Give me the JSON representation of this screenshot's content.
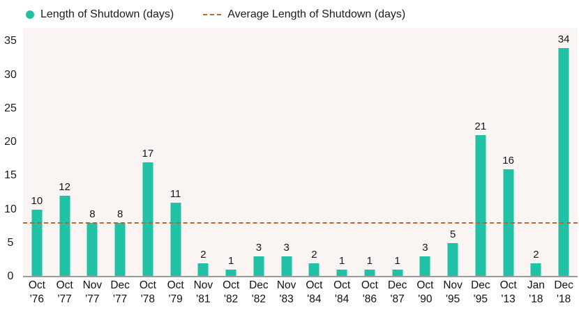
{
  "legend": {
    "series1": "Length of Shutdown (days)",
    "series2": "Average Length of Shutdown (days)"
  },
  "colors": {
    "bar": "#20c1a5",
    "average_line": "#bc6530",
    "plot_bg": "#faf4f2",
    "axis_line": "#9b9b9b",
    "text": "#1c1c1e"
  },
  "chart_data": {
    "type": "bar",
    "title": "",
    "xlabel": "",
    "ylabel": "",
    "legend_position": "top",
    "grid": false,
    "categories": [
      "Oct '76",
      "Oct '77",
      "Nov '77",
      "Dec '77",
      "Oct '78",
      "Oct '79",
      "Nov '81",
      "Oct '82",
      "Dec '82",
      "Nov '83",
      "Oct '84",
      "Oct '84",
      "Oct '86",
      "Dec '87",
      "Oct '90",
      "Nov '95",
      "Dec '95",
      "Oct '13",
      "Jan '18",
      "Dec '18"
    ],
    "x_tick_line1": [
      "Oct",
      "Oct",
      "Nov",
      "Dec",
      "Oct",
      "Oct",
      "Nov",
      "Oct",
      "Dec",
      "Nov",
      "Oct",
      "Oct",
      "Oct",
      "Dec",
      "Oct",
      "Nov",
      "Dec",
      "Oct",
      "Jan",
      "Dec"
    ],
    "x_tick_line2": [
      "'76",
      "'77",
      "'77",
      "'77",
      "'78",
      "'79",
      "'81",
      "'82",
      "'82",
      "'83",
      "'84",
      "'84",
      "'86",
      "'87",
      "'90",
      "'95",
      "'95",
      "'13",
      "'18",
      "'18"
    ],
    "values": [
      10,
      12,
      8,
      8,
      17,
      11,
      2,
      1,
      3,
      3,
      2,
      1,
      1,
      1,
      3,
      5,
      21,
      16,
      2,
      34
    ],
    "average": 8,
    "y_ticks": [
      0,
      5,
      10,
      15,
      20,
      25,
      30,
      35
    ],
    "ylim": [
      0,
      37
    ]
  }
}
